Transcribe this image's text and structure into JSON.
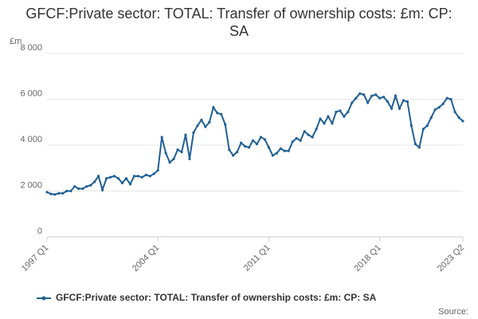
{
  "chart_data": {
    "type": "line",
    "title": "GFCF:Private sector: TOTAL: Transfer of ownership costs: £m: CP: SA",
    "y_unit": "£m",
    "source": "Source:",
    "categories": [
      "1997 Q1",
      null,
      null,
      null,
      null,
      null,
      null,
      null,
      null,
      null,
      null,
      null,
      null,
      null,
      null,
      null,
      null,
      null,
      null,
      null,
      null,
      null,
      null,
      null,
      null,
      null,
      null,
      null,
      "2004 Q1",
      null,
      null,
      null,
      null,
      null,
      null,
      null,
      null,
      null,
      null,
      null,
      null,
      null,
      null,
      null,
      null,
      null,
      null,
      null,
      null,
      null,
      null,
      null,
      null,
      null,
      null,
      null,
      "2011 Q1",
      null,
      null,
      null,
      null,
      null,
      null,
      null,
      null,
      null,
      null,
      null,
      null,
      null,
      null,
      null,
      null,
      null,
      null,
      null,
      null,
      null,
      null,
      null,
      null,
      null,
      null,
      null,
      "2018 Q1",
      null,
      null,
      null,
      null,
      null,
      null,
      null,
      null,
      null,
      null,
      null,
      null,
      null,
      null,
      null,
      null,
      null,
      null,
      null,
      null,
      "2023 Q2"
    ],
    "series": [
      {
        "name": "GFCF:Private sector: TOTAL: Transfer of ownership costs: £m: CP: SA",
        "color": "#206095",
        "values": [
          1950,
          1870,
          1850,
          1900,
          1900,
          2000,
          2000,
          2200,
          2100,
          2100,
          2200,
          2250,
          2400,
          2650,
          2050,
          2550,
          2600,
          2650,
          2550,
          2350,
          2550,
          2300,
          2650,
          2650,
          2600,
          2700,
          2650,
          2750,
          2900,
          4350,
          3650,
          3250,
          3400,
          3800,
          3700,
          4450,
          3400,
          4550,
          4850,
          5100,
          4800,
          5000,
          5650,
          5400,
          5350,
          4900,
          3800,
          3550,
          3700,
          4100,
          3950,
          3900,
          4200,
          4050,
          4350,
          4250,
          3900,
          3550,
          3650,
          3850,
          3750,
          3750,
          4150,
          4300,
          4200,
          4600,
          4450,
          4350,
          4700,
          5150,
          4950,
          5250,
          4950,
          5450,
          5500,
          5250,
          5450,
          5850,
          6050,
          6250,
          6200,
          5850,
          6150,
          6200,
          6050,
          6100,
          5900,
          5600,
          6150,
          5600,
          5950,
          5900,
          4850,
          4050,
          3900,
          4700,
          4850,
          5200,
          5550,
          5650,
          5800,
          6050,
          6000,
          5450,
          5200,
          5050
        ]
      }
    ],
    "ylim": [
      0,
      8000
    ],
    "yticks": [
      0,
      {
        "value": 2000,
        "label": "2 000"
      },
      {
        "value": 4000,
        "label": "4 000"
      },
      {
        "value": 6000,
        "label": "6 000"
      },
      {
        "value": 8000,
        "label": "8 000"
      }
    ],
    "grid": true,
    "legend": "bottom"
  }
}
